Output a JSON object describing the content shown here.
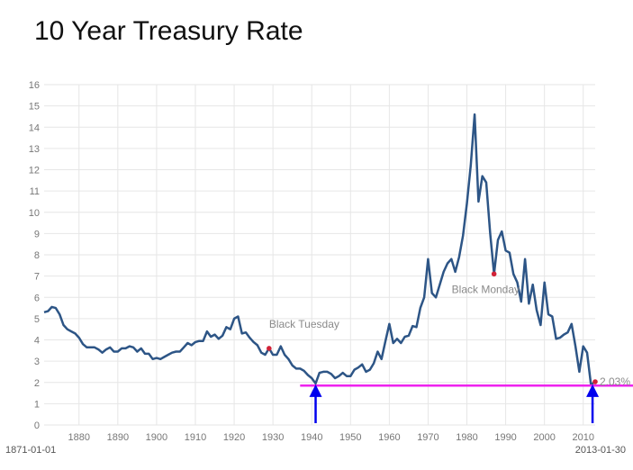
{
  "chart_data": {
    "type": "line",
    "title": "10 Year Treasury Rate",
    "xlabel": "",
    "ylabel": "",
    "xlim": [
      1871,
      2013.08
    ],
    "ylim": [
      0,
      16
    ],
    "y_ticks": [
      0,
      1,
      2,
      3,
      4,
      5,
      6,
      7,
      8,
      9,
      10,
      11,
      12,
      13,
      14,
      15,
      16
    ],
    "x_ticks": [
      1880,
      1890,
      1900,
      1910,
      1920,
      1930,
      1940,
      1950,
      1960,
      1970,
      1980,
      1990,
      2000,
      2010
    ],
    "grid": true,
    "range_start_label": "1871-01-01",
    "range_end_label": "2013-01-30",
    "line_color": "#2d5586",
    "series": [
      {
        "x": [
          1871,
          1872,
          1873,
          1874,
          1875,
          1876,
          1877,
          1878,
          1879,
          1880,
          1881,
          1882,
          1883,
          1884,
          1885,
          1886,
          1887,
          1888,
          1889,
          1890,
          1891,
          1892,
          1893,
          1894,
          1895,
          1896,
          1897,
          1898,
          1899,
          1900,
          1901,
          1902,
          1903,
          1904,
          1905,
          1906,
          1907,
          1908,
          1909,
          1910,
          1911,
          1912,
          1913,
          1914,
          1915,
          1916,
          1917,
          1918,
          1919,
          1920,
          1921,
          1922,
          1923,
          1924,
          1925,
          1926,
          1927,
          1928,
          1929,
          1930,
          1931,
          1932,
          1933,
          1934,
          1935,
          1936,
          1937,
          1938,
          1939,
          1940,
          1941,
          1942,
          1943,
          1944,
          1945,
          1946,
          1947,
          1948,
          1949,
          1950,
          1951,
          1952,
          1953,
          1954,
          1955,
          1956,
          1957,
          1958,
          1959,
          1960,
          1961,
          1962,
          1963,
          1964,
          1965,
          1966,
          1967,
          1968,
          1969,
          1970,
          1971,
          1972,
          1973,
          1974,
          1975,
          1976,
          1977,
          1978,
          1979,
          1980,
          1981,
          1982,
          1983,
          1984,
          1985,
          1986,
          1987,
          1988,
          1989,
          1990,
          1991,
          1992,
          1993,
          1994,
          1995,
          1996,
          1997,
          1998,
          1999,
          2000,
          2001,
          2002,
          2003,
          2004,
          2005,
          2006,
          2007,
          2008,
          2009,
          2010,
          2011,
          2012,
          2013.08
        ],
        "y": [
          5.3,
          5.35,
          5.55,
          5.5,
          5.2,
          4.7,
          4.5,
          4.4,
          4.3,
          4.1,
          3.8,
          3.65,
          3.65,
          3.65,
          3.55,
          3.4,
          3.55,
          3.65,
          3.45,
          3.45,
          3.6,
          3.6,
          3.7,
          3.65,
          3.45,
          3.6,
          3.35,
          3.35,
          3.1,
          3.15,
          3.1,
          3.2,
          3.3,
          3.4,
          3.45,
          3.45,
          3.65,
          3.85,
          3.75,
          3.9,
          3.95,
          3.95,
          4.4,
          4.15,
          4.25,
          4.05,
          4.2,
          4.6,
          4.5,
          5.0,
          5.1,
          4.3,
          4.35,
          4.1,
          3.9,
          3.75,
          3.4,
          3.3,
          3.6,
          3.3,
          3.3,
          3.7,
          3.3,
          3.1,
          2.8,
          2.65,
          2.65,
          2.55,
          2.35,
          2.2,
          1.95,
          2.45,
          2.5,
          2.5,
          2.4,
          2.2,
          2.3,
          2.45,
          2.3,
          2.3,
          2.6,
          2.7,
          2.85,
          2.5,
          2.6,
          2.9,
          3.45,
          3.1,
          3.95,
          4.75,
          3.85,
          4.05,
          3.85,
          4.15,
          4.2,
          4.65,
          4.6,
          5.5,
          6.0,
          7.8,
          6.2,
          6.0,
          6.6,
          7.2,
          7.6,
          7.8,
          7.2,
          7.9,
          8.9,
          10.4,
          12.2,
          14.6,
          10.5,
          11.7,
          11.4,
          9.0,
          7.1,
          8.7,
          9.1,
          8.2,
          8.1,
          7.1,
          6.7,
          5.8,
          7.8,
          5.7,
          6.6,
          5.4,
          4.7,
          6.7,
          5.2,
          5.1,
          4.05,
          4.1,
          4.25,
          4.35,
          4.75,
          3.7,
          2.5,
          3.7,
          3.4,
          1.9,
          2.03
        ]
      }
    ],
    "annotations": [
      {
        "label": "Black Tuesday",
        "x": 1929,
        "y": 3.6,
        "marker_color": "#d22238"
      },
      {
        "label": "Black Monday",
        "x": 1987,
        "y": 7.1,
        "marker_color": "#d22238"
      },
      {
        "label": "2.03%",
        "x": 2013.08,
        "y": 2.03,
        "marker_color": "#d22238"
      }
    ],
    "reference_line": {
      "y": 1.85,
      "x_start": 1937,
      "color": "#ee22ee"
    },
    "arrows": [
      {
        "x": 1941,
        "color": "#0000ee"
      },
      {
        "x": 2012.4,
        "color": "#0000ee"
      }
    ]
  }
}
